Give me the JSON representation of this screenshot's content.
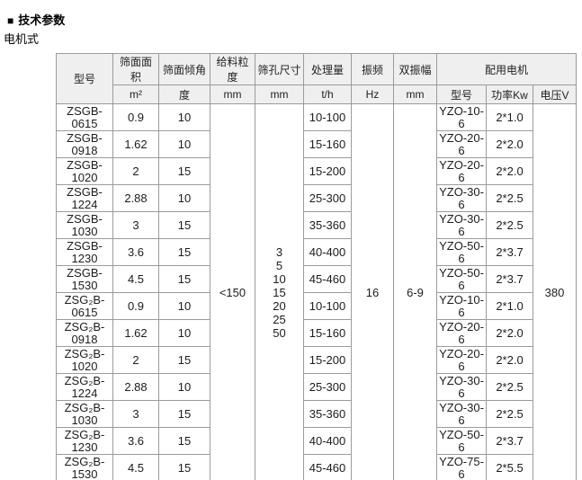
{
  "page": {
    "bullet": "■",
    "title": "技术参数",
    "subtitle": "电机式"
  },
  "colors": {
    "header_bg": "#efefef",
    "border": "#9b9b9b",
    "text": "#1c1c1c",
    "background": "#ffffff"
  },
  "table": {
    "header": {
      "model": "型号",
      "columns": [
        {
          "name": "筛面面积",
          "unit": "m²"
        },
        {
          "name": "筛面倾角",
          "unit": "度"
        },
        {
          "name": "给料粒度",
          "unit": "mm"
        },
        {
          "name": "筛孔尺寸",
          "unit": "mm"
        },
        {
          "name": "处理量",
          "unit": "t/h"
        },
        {
          "name": "振频",
          "unit": "Hz"
        },
        {
          "name": "双振幅",
          "unit": "mm"
        }
      ],
      "motor_group": "配用电机",
      "motor_columns": [
        {
          "name": "型号"
        },
        {
          "name": "功率Kw"
        },
        {
          "name": "电压V"
        }
      ]
    },
    "merged": {
      "feed_size": "<150",
      "mesh_sizes": [
        "3",
        "5",
        "10",
        "15",
        "20",
        "25",
        "50"
      ],
      "frequency": "16",
      "amplitude": "6-9",
      "voltage": "380"
    },
    "rows": [
      {
        "model": "ZSGB-0615",
        "area": "0.9",
        "angle": "10",
        "capacity": "10-100",
        "motor_model": "YZO-10-6",
        "power": "2*1.0"
      },
      {
        "model": "ZSGB-0918",
        "area": "1.62",
        "angle": "10",
        "capacity": "15-160",
        "motor_model": "YZO-20-6",
        "power": "2*2.0"
      },
      {
        "model": "ZSGB-1020",
        "area": "2",
        "angle": "15",
        "capacity": "15-200",
        "motor_model": "YZO-20-6",
        "power": "2*2.0"
      },
      {
        "model": "ZSGB-1224",
        "area": "2.88",
        "angle": "10",
        "capacity": "25-300",
        "motor_model": "YZO-30-6",
        "power": "2*2.5"
      },
      {
        "model": "ZSGB-1030",
        "area": "3",
        "angle": "15",
        "capacity": "35-360",
        "motor_model": "YZO-30-6",
        "power": "2*2.5"
      },
      {
        "model": "ZSGB-1230",
        "area": "3.6",
        "angle": "15",
        "capacity": "40-400",
        "motor_model": "YZO-50-6",
        "power": "2*3.7"
      },
      {
        "model": "ZSGB-1530",
        "area": "4.5",
        "angle": "15",
        "capacity": "45-460",
        "motor_model": "YZO-50-6",
        "power": "2*3.7"
      },
      {
        "model": "ZSG₂B-0615",
        "area": "0.9",
        "angle": "10",
        "capacity": "10-100",
        "motor_model": "YZO-10-6",
        "power": "2*1.0"
      },
      {
        "model": "ZSG₂B-0918",
        "area": "1.62",
        "angle": "10",
        "capacity": "15-160",
        "motor_model": "YZO-20-6",
        "power": "2*2.0"
      },
      {
        "model": "ZSG₂B-1020",
        "area": "2",
        "angle": "15",
        "capacity": "15-200",
        "motor_model": "YZO-20-6",
        "power": "2*2.0"
      },
      {
        "model": "ZSG₂B-1224",
        "area": "2.88",
        "angle": "10",
        "capacity": "25-300",
        "motor_model": "YZO-30-6",
        "power": "2*2.5"
      },
      {
        "model": "ZSG₂B-1030",
        "area": "3",
        "angle": "15",
        "capacity": "35-360",
        "motor_model": "YZO-30-6",
        "power": "2*2.5"
      },
      {
        "model": "ZSG₂B-1230",
        "area": "3.6",
        "angle": "15",
        "capacity": "40-400",
        "motor_model": "YZO-50-6",
        "power": "2*3.7"
      },
      {
        "model": "ZSG₂B-1530",
        "area": "4.5",
        "angle": "15",
        "capacity": "45-460",
        "motor_model": "YZO-75-6",
        "power": "2*5.5"
      }
    ]
  }
}
